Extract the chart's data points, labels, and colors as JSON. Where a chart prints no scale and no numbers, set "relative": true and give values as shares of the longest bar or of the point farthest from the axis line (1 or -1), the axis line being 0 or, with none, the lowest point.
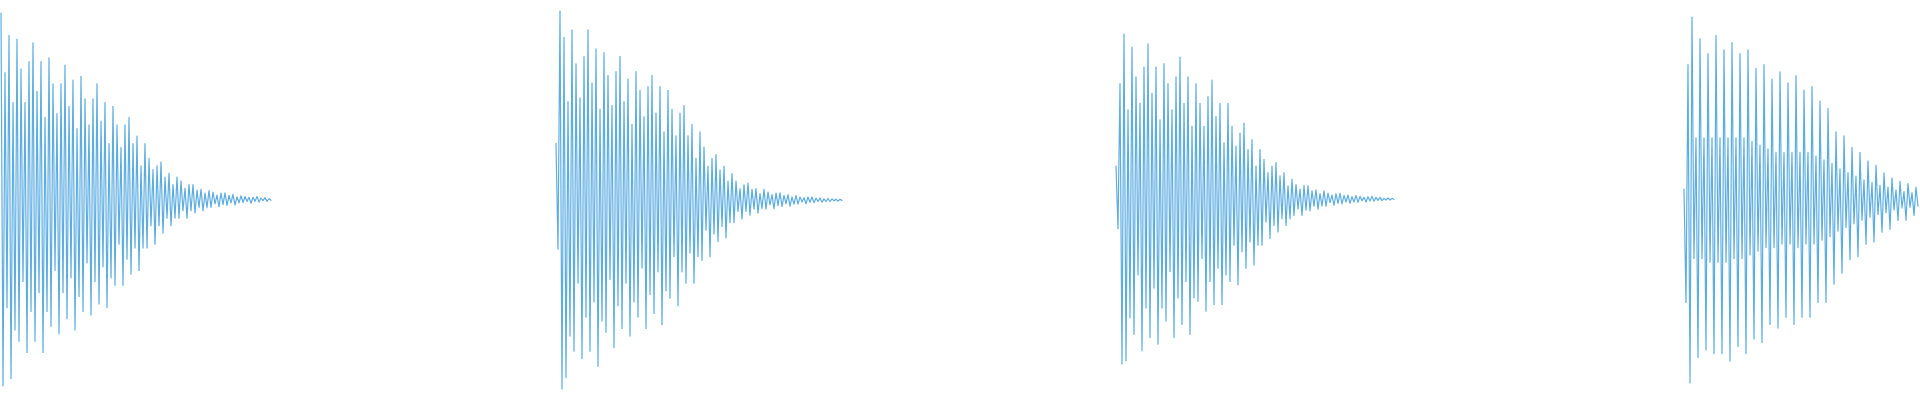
{
  "chart_data": [
    {
      "type": "line",
      "relative": true,
      "tick_labels": false,
      "color": "#5dade2",
      "categories": [
        null,
        null,
        null,
        null,
        null,
        null,
        null,
        null,
        null,
        null,
        null,
        null,
        null,
        null,
        null,
        null,
        null,
        null,
        null,
        null,
        null,
        null,
        null,
        null,
        null,
        null,
        null,
        null,
        null,
        null,
        null,
        null,
        null,
        null,
        null,
        null,
        null,
        null,
        null,
        null,
        null,
        null,
        null,
        null,
        null,
        null,
        null,
        null,
        null,
        null,
        null,
        null,
        null,
        null,
        null,
        null,
        null,
        null,
        null,
        null,
        null,
        null,
        null,
        null,
        null,
        null,
        null,
        null,
        null,
        null,
        null,
        null,
        null,
        null,
        null,
        null,
        null,
        null,
        null,
        null,
        null,
        null,
        null,
        null,
        null,
        null,
        null,
        null,
        null,
        null,
        null,
        null,
        null,
        null,
        null,
        null,
        null,
        null,
        null,
        null,
        null,
        null,
        null,
        null,
        null,
        null,
        null,
        null,
        null,
        null,
        null,
        null,
        null,
        null,
        null,
        null,
        null,
        null,
        null,
        null,
        null,
        null,
        null,
        null,
        null,
        null,
        null,
        null,
        null,
        null,
        null,
        null,
        null,
        null,
        null,
        null
      ],
      "values": [
        1,
        0,
        0.84,
        0.21,
        0.94,
        0.02,
        0.76,
        0.15,
        0.93,
        0.12,
        0.85,
        0.28,
        0.76,
        0.09,
        0.87,
        0.2,
        0.92,
        0.12,
        0.79,
        0.25,
        0.87,
        0.09,
        0.72,
        0.2,
        0.88,
        0.16,
        0.81,
        0.31,
        0.73,
        0.14,
        0.81,
        0.25,
        0.86,
        0.18,
        0.75,
        0.29,
        0.82,
        0.15,
        0.69,
        0.24,
        0.83,
        0.2,
        0.77,
        0.33,
        0.7,
        0.19,
        0.77,
        0.28,
        0.81,
        0.22,
        0.71,
        0.32,
        0.76,
        0.21,
        0.65,
        0.29,
        0.75,
        0.27,
        0.7,
        0.38,
        0.64,
        0.27,
        0.7,
        0.34,
        0.72,
        0.3,
        0.65,
        0.37,
        0.67,
        0.31,
        0.59,
        0.37,
        0.65,
        0.37,
        0.61,
        0.43,
        0.58,
        0.38,
        0.59,
        0.43,
        0.6,
        0.41,
        0.56,
        0.45,
        0.57,
        0.43,
        0.54,
        0.45,
        0.56,
        0.45,
        0.55,
        0.47,
        0.53,
        0.45,
        0.54,
        0.47,
        0.54,
        0.464,
        0.525,
        0.479,
        0.527,
        0.47,
        0.517,
        0.478,
        0.524,
        0.479,
        0.52,
        0.488,
        0.512,
        0.481,
        0.517,
        0.486,
        0.518,
        0.484,
        0.511,
        0.491,
        0.514,
        0.485,
        0.507,
        0.491,
        0.51,
        0.492,
        0.508,
        0.495,
        0.506,
        0.49,
        0.506,
        0.495,
        0.508,
        0.493,
        0.504,
        0.497,
        0.505,
        0.495,
        0.502,
        0.498
      ]
    },
    {
      "type": "line",
      "relative": true,
      "tick_labels": false,
      "color": "#5dade2",
      "categories": [
        null,
        null,
        null,
        null,
        null,
        null,
        null,
        null,
        null,
        null,
        null,
        null,
        null,
        null,
        null,
        null,
        null,
        null,
        null,
        null,
        null,
        null,
        null,
        null,
        null,
        null,
        null,
        null,
        null,
        null,
        null,
        null,
        null,
        null,
        null,
        null,
        null,
        null,
        null,
        null,
        null,
        null,
        null,
        null,
        null,
        null,
        null,
        null,
        null,
        null,
        null,
        null,
        null,
        null,
        null,
        null,
        null,
        null,
        null,
        null,
        null,
        null,
        null,
        null,
        null,
        null,
        null,
        null,
        null,
        null,
        null,
        null,
        null,
        null,
        null,
        null,
        null,
        null,
        null,
        null,
        null,
        null,
        null,
        null,
        null,
        null,
        null,
        null,
        null,
        null,
        null,
        null,
        null,
        null,
        null,
        null,
        null,
        null,
        null,
        null,
        null,
        null,
        null,
        null,
        null,
        null,
        null,
        null,
        null,
        null,
        null,
        null,
        null,
        null,
        null,
        null,
        null,
        null,
        null,
        null,
        null,
        null,
        null,
        null,
        null,
        null,
        null,
        null,
        null,
        null,
        null,
        null,
        null,
        null,
        null,
        null,
        null,
        null,
        null,
        null,
        null,
        null,
        null,
        null
      ],
      "values": [
        0.65,
        0.37,
        1,
        0,
        0.93,
        0.03,
        0.76,
        0.14,
        0.95,
        0.1,
        0.86,
        0.28,
        0.77,
        0.08,
        0.88,
        0.19,
        0.95,
        0.1,
        0.81,
        0.23,
        0.9,
        0.06,
        0.74,
        0.18,
        0.89,
        0.15,
        0.83,
        0.29,
        0.75,
        0.11,
        0.84,
        0.22,
        0.88,
        0.16,
        0.76,
        0.28,
        0.82,
        0.14,
        0.7,
        0.23,
        0.84,
        0.19,
        0.79,
        0.32,
        0.72,
        0.16,
        0.8,
        0.25,
        0.83,
        0.2,
        0.73,
        0.31,
        0.8,
        0.17,
        0.68,
        0.26,
        0.79,
        0.24,
        0.74,
        0.35,
        0.67,
        0.22,
        0.73,
        0.31,
        0.75,
        0.28,
        0.67,
        0.36,
        0.7,
        0.28,
        0.61,
        0.35,
        0.68,
        0.34,
        0.64,
        0.42,
        0.59,
        0.35,
        0.61,
        0.41,
        0.62,
        0.39,
        0.58,
        0.43,
        0.59,
        0.4,
        0.55,
        0.44,
        0.57,
        0.44,
        0.55,
        0.47,
        0.53,
        0.45,
        0.54,
        0.47,
        0.545,
        0.46,
        0.528,
        0.476,
        0.53,
        0.465,
        0.517,
        0.478,
        0.528,
        0.476,
        0.521,
        0.487,
        0.514,
        0.477,
        0.518,
        0.485,
        0.519,
        0.483,
        0.512,
        0.49,
        0.514,
        0.484,
        0.508,
        0.489,
        0.512,
        0.489,
        0.508,
        0.495,
        0.506,
        0.49,
        0.508,
        0.494,
        0.508,
        0.493,
        0.505,
        0.496,
        0.505,
        0.494,
        0.503,
        0.496,
        0.504,
        0.496,
        0.503,
        0.498,
        0.502,
        0.497,
        0.502,
        0.499
      ]
    },
    {
      "type": "line",
      "relative": true,
      "tick_labels": false,
      "color": "#5dade2",
      "categories": [
        null,
        null,
        null,
        null,
        null,
        null,
        null,
        null,
        null,
        null,
        null,
        null,
        null,
        null,
        null,
        null,
        null,
        null,
        null,
        null,
        null,
        null,
        null,
        null,
        null,
        null,
        null,
        null,
        null,
        null,
        null,
        null,
        null,
        null,
        null,
        null,
        null,
        null,
        null,
        null,
        null,
        null,
        null,
        null,
        null,
        null,
        null,
        null,
        null,
        null,
        null,
        null,
        null,
        null,
        null,
        null,
        null,
        null,
        null,
        null,
        null,
        null,
        null,
        null,
        null,
        null,
        null,
        null,
        null,
        null,
        null,
        null,
        null,
        null,
        null,
        null,
        null,
        null,
        null,
        null,
        null,
        null,
        null,
        null,
        null,
        null,
        null,
        null,
        null,
        null,
        null,
        null,
        null,
        null,
        null,
        null,
        null,
        null,
        null,
        null,
        null,
        null,
        null,
        null,
        null,
        null,
        null,
        null,
        null,
        null,
        null,
        null,
        null,
        null,
        null,
        null,
        null,
        null,
        null,
        null,
        null,
        null,
        null,
        null,
        null,
        null,
        null,
        null,
        null,
        null,
        null,
        null,
        null,
        null,
        null,
        null,
        null,
        null,
        null,
        null
      ],
      "values": [
        0.6,
        0.41,
        0.85,
        0,
        1,
        0.01,
        0.77,
        0.14,
        0.96,
        0.09,
        0.87,
        0.27,
        0.79,
        0.04,
        0.9,
        0.17,
        0.97,
        0.08,
        0.82,
        0.23,
        0.9,
        0.06,
        0.74,
        0.17,
        0.91,
        0.13,
        0.85,
        0.28,
        0.77,
        0.08,
        0.87,
        0.2,
        0.93,
        0.12,
        0.79,
        0.25,
        0.87,
        0.09,
        0.72,
        0.2,
        0.85,
        0.19,
        0.79,
        0.32,
        0.72,
        0.16,
        0.81,
        0.25,
        0.86,
        0.18,
        0.75,
        0.29,
        0.79,
        0.18,
        0.67,
        0.27,
        0.79,
        0.25,
        0.72,
        0.36,
        0.66,
        0.24,
        0.7,
        0.34,
        0.73,
        0.29,
        0.65,
        0.37,
        0.68,
        0.3,
        0.6,
        0.36,
        0.65,
        0.36,
        0.62,
        0.43,
        0.58,
        0.38,
        0.6,
        0.42,
        0.61,
        0.4,
        0.57,
        0.44,
        0.58,
        0.42,
        0.54,
        0.44,
        0.56,
        0.45,
        0.544,
        0.47,
        0.53,
        0.45,
        0.541,
        0.466,
        0.54,
        0.464,
        0.525,
        0.478,
        0.528,
        0.469,
        0.516,
        0.479,
        0.525,
        0.478,
        0.518,
        0.489,
        0.512,
        0.481,
        0.516,
        0.487,
        0.517,
        0.485,
        0.511,
        0.491,
        0.512,
        0.487,
        0.507,
        0.491,
        0.511,
        0.49,
        0.508,
        0.495,
        0.505,
        0.491,
        0.507,
        0.494,
        0.508,
        0.493,
        0.505,
        0.496,
        0.505,
        0.495,
        0.502,
        0.497,
        0.503,
        0.497,
        0.502,
        0.499
      ]
    },
    {
      "type": "line",
      "relative": true,
      "tick_labels": false,
      "color": "#5dade2",
      "categories": [
        null,
        null,
        null,
        null,
        null,
        null,
        null,
        null,
        null,
        null,
        null,
        null,
        null,
        null,
        null,
        null,
        null,
        null,
        null,
        null,
        null,
        null,
        null,
        null,
        null,
        null,
        null,
        null,
        null,
        null,
        null,
        null,
        null,
        null,
        null,
        null,
        null,
        null,
        null,
        null,
        null,
        null,
        null,
        null,
        null,
        null,
        null,
        null,
        null,
        null,
        null,
        null,
        null,
        null,
        null,
        null,
        null,
        null,
        null,
        null,
        null,
        null,
        null,
        null,
        null,
        null,
        null,
        null,
        null,
        null,
        null,
        null,
        null,
        null,
        null,
        null,
        null,
        null,
        null,
        null,
        null,
        null,
        null,
        null,
        null,
        null,
        null,
        null,
        null,
        null,
        null,
        null,
        null,
        null,
        null,
        null,
        null,
        null,
        null,
        null,
        null,
        null,
        null,
        null,
        null,
        null,
        null,
        null,
        null,
        null,
        null,
        null,
        null,
        null,
        null,
        null,
        null,
        null
      ],
      "values": [
        0.53,
        0.22,
        0.87,
        0,
        1,
        0.34,
        0.67,
        0.07,
        0.94,
        0.34,
        0.67,
        0.09,
        0.9,
        0.33,
        0.67,
        0.08,
        0.95,
        0.33,
        0.67,
        0.08,
        0.91,
        0.33,
        0.67,
        0.06,
        0.93,
        0.34,
        0.67,
        0.1,
        0.9,
        0.34,
        0.67,
        0.08,
        0.91,
        0.35,
        0.66,
        0.12,
        0.86,
        0.36,
        0.65,
        0.11,
        0.87,
        0.37,
        0.64,
        0.16,
        0.83,
        0.37,
        0.63,
        0.15,
        0.85,
        0.38,
        0.63,
        0.18,
        0.82,
        0.38,
        0.63,
        0.16,
        0.84,
        0.37,
        0.63,
        0.18,
        0.8,
        0.38,
        0.63,
        0.18,
        0.81,
        0.38,
        0.62,
        0.22,
        0.77,
        0.39,
        0.61,
        0.22,
        0.75,
        0.4,
        0.6,
        0.27,
        0.686,
        0.415,
        0.585,
        0.3,
        0.675,
        0.425,
        0.575,
        0.337,
        0.644,
        0.435,
        0.565,
        0.345,
        0.63,
        0.445,
        0.555,
        0.379,
        0.607,
        0.453,
        0.548,
        0.385,
        0.595,
        0.46,
        0.54,
        0.412,
        0.574,
        0.465,
        0.535,
        0.42,
        0.56,
        0.473,
        0.528,
        0.444,
        0.551,
        0.478,
        0.523,
        0.445,
        0.545,
        0.48,
        0.52,
        0.458,
        0.535,
        0.483
      ]
    }
  ]
}
